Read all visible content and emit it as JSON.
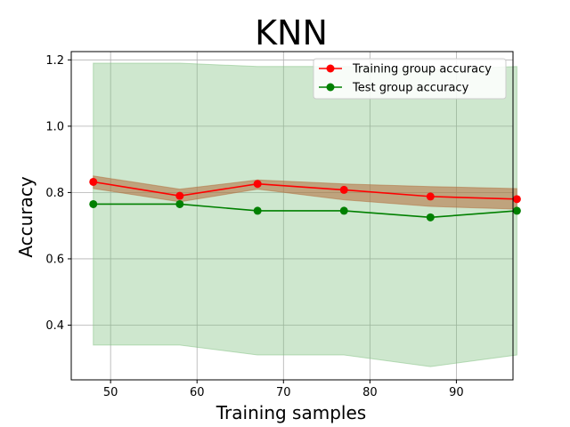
{
  "chart_data": {
    "type": "line",
    "title": "KNN",
    "xlabel": "Training samples",
    "ylabel": "Accuracy",
    "xlim": [
      45.45,
      96.55
    ],
    "ylim": [
      0.235,
      1.225
    ],
    "xticks": [
      50,
      60,
      70,
      80,
      90
    ],
    "yticks": [
      0.4,
      0.6,
      0.8,
      1.0,
      1.2
    ],
    "xtick_labels": [
      "50",
      "60",
      "70",
      "80",
      "90"
    ],
    "ytick_labels": [
      "0.4",
      "0.6",
      "0.8",
      "1.0",
      "1.2"
    ],
    "grid": true,
    "legend_position": "top-right",
    "x": [
      48,
      58,
      67,
      77,
      87,
      97
    ],
    "series": [
      {
        "name": "Training group accuracy",
        "color": "#ff0000",
        "band_color": "#b26b3a",
        "values": [
          0.832,
          0.79,
          0.826,
          0.808,
          0.788,
          0.78
        ],
        "band_upper": [
          0.85,
          0.81,
          0.838,
          0.826,
          0.818,
          0.812
        ],
        "band_lower": [
          0.812,
          0.772,
          0.81,
          0.778,
          0.758,
          0.75
        ]
      },
      {
        "name": "Test group accuracy",
        "color": "#008000",
        "band_color": "#7fbf7f",
        "values": [
          0.765,
          0.765,
          0.745,
          0.745,
          0.725,
          0.745
        ],
        "band_upper": [
          1.19,
          1.19,
          1.18,
          1.18,
          1.17,
          1.18
        ],
        "band_lower": [
          0.34,
          0.34,
          0.31,
          0.31,
          0.275,
          0.31
        ]
      }
    ]
  }
}
